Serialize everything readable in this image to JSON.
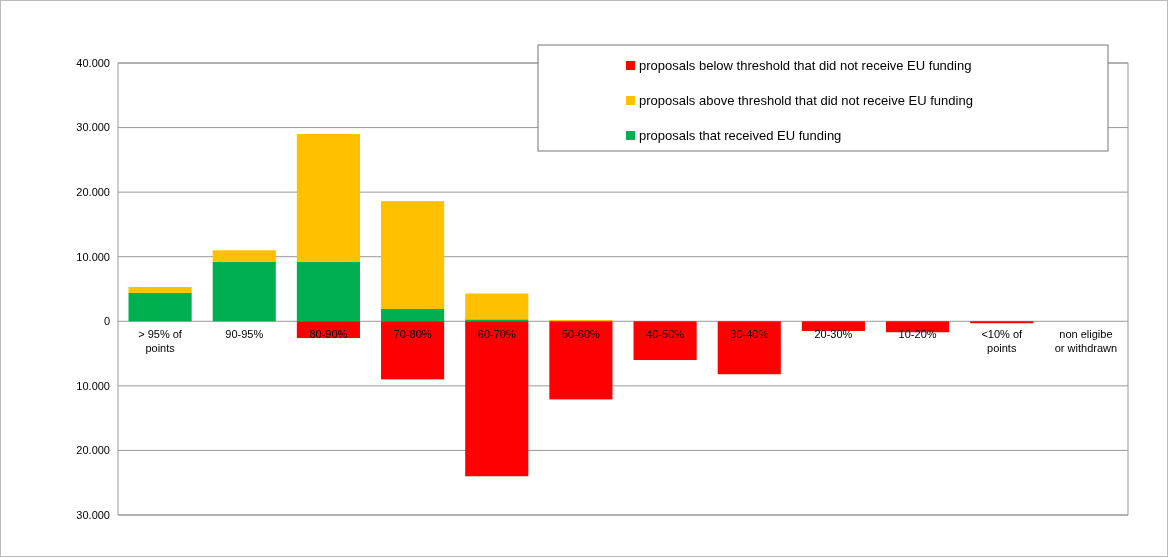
{
  "chart_data": {
    "type": "bar",
    "stacked": true,
    "categories": [
      "> 95% of points",
      "90-95%",
      "80-90%",
      "70-80%",
      "60-70%",
      "50-60%",
      "40-50%",
      "30-40%",
      "20-30%",
      "10-20%",
      "<10% of points",
      "non eligibe or withdrawn"
    ],
    "series": [
      {
        "name": "proposals that received EU funding",
        "color": "#00b050",
        "values": [
          4400,
          9200,
          9200,
          1900,
          300,
          0,
          0,
          0,
          0,
          0,
          0,
          0
        ]
      },
      {
        "name": "proposals above threshold that did not receive EU funding",
        "color": "#ffc000",
        "values": [
          900,
          1800,
          19800,
          16700,
          4000,
          200,
          0,
          0,
          0,
          0,
          0,
          0
        ]
      },
      {
        "name": "proposals below threshold that did not receive EU funding",
        "color": "#ff0000",
        "values": [
          0,
          0,
          -2600,
          -9000,
          -24000,
          -12100,
          -6000,
          -8200,
          -1500,
          -1700,
          -300,
          0
        ]
      }
    ],
    "ylim": [
      -30000,
      40000
    ],
    "yticks": [
      {
        "value": -30000,
        "label": "30.000"
      },
      {
        "value": -20000,
        "label": "20.000"
      },
      {
        "value": -10000,
        "label": "10.000"
      },
      {
        "value": 0,
        "label": "0"
      },
      {
        "value": 10000,
        "label": "10.000"
      },
      {
        "value": 20000,
        "label": "20.000"
      },
      {
        "value": 30000,
        "label": "30.000"
      },
      {
        "value": 40000,
        "label": "40.000"
      }
    ],
    "grid": "y",
    "legend": "top right"
  }
}
